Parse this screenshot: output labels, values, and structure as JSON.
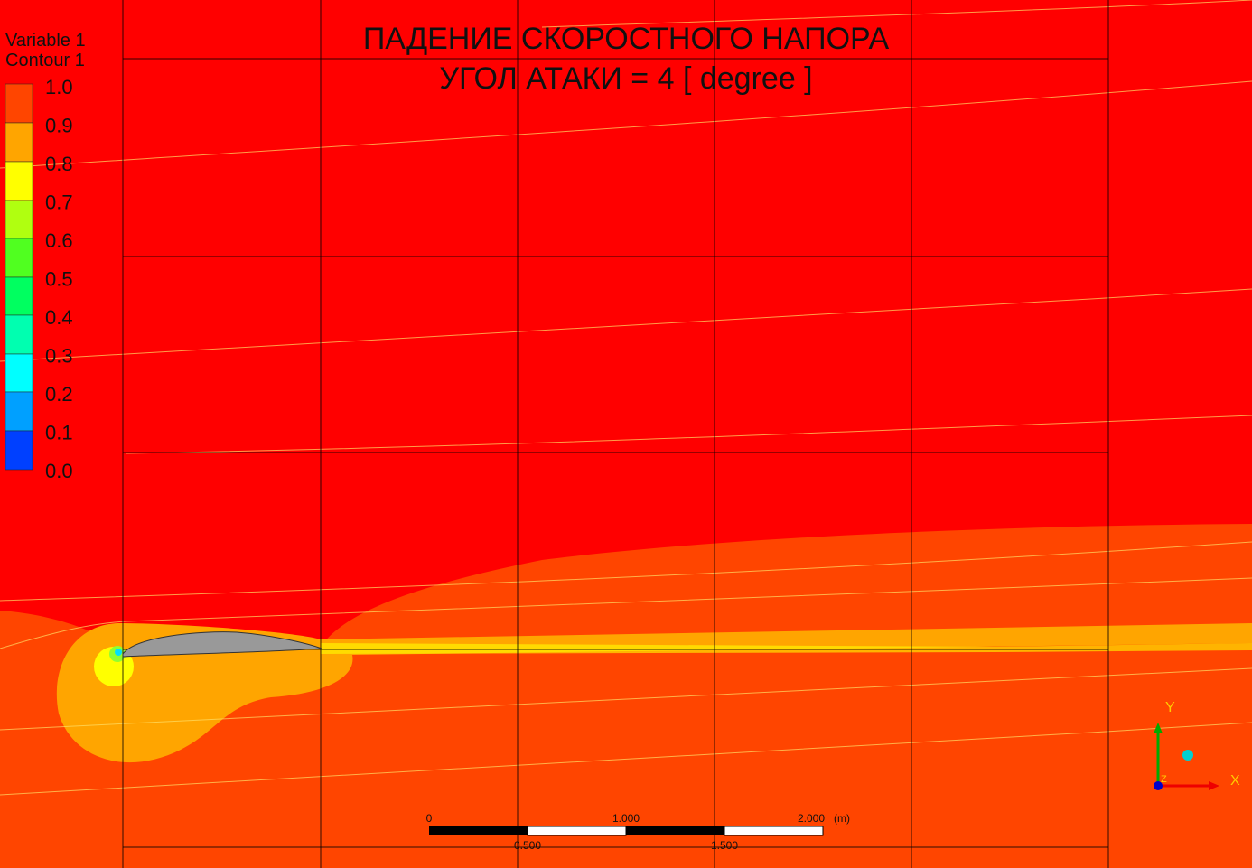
{
  "title": [
    "ПАДЕНИЕ СКОРОСТНОГО НАПОРА",
    "УГОЛ АТАКИ = 4 [ degree ]"
  ],
  "legend": {
    "variable": "Variable 1",
    "contour": "Contour 1",
    "labels": [
      "1.0",
      "0.9",
      "0.8",
      "0.7",
      "0.6",
      "0.5",
      "0.4",
      "0.3",
      "0.2",
      "0.1",
      "0.0"
    ]
  },
  "scale_bar": {
    "top": [
      "0",
      "1.000",
      "2.000",
      "(m)"
    ],
    "bottom": [
      "0.500",
      "1.500"
    ]
  },
  "axes": {
    "x": "X",
    "y": "Y",
    "z": "Z"
  }
}
